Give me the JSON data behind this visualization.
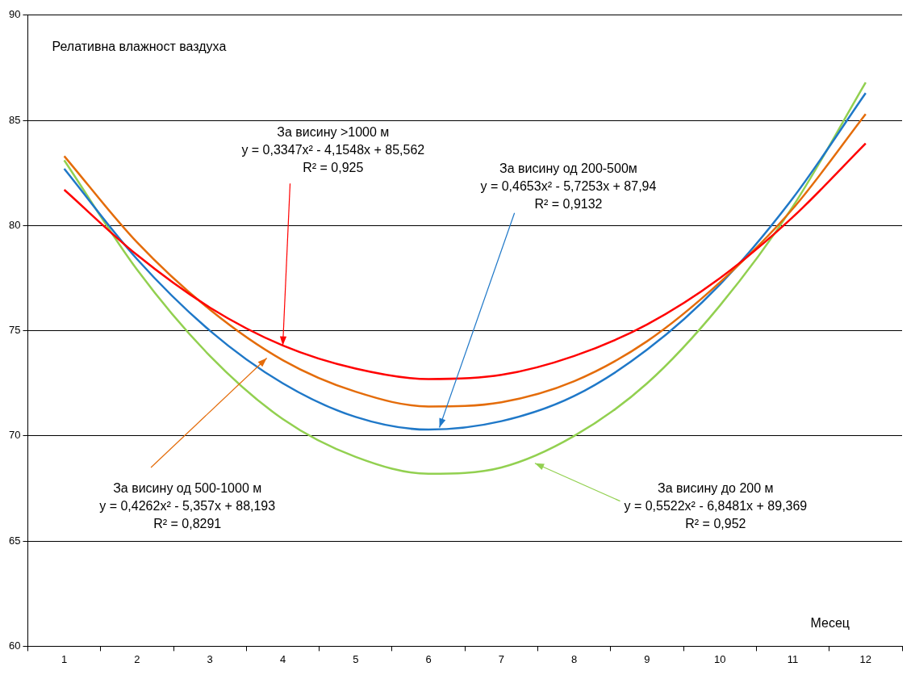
{
  "chart_data": {
    "type": "line",
    "title": "Релативна влажност ваздуха",
    "xlabel": "Месец",
    "categories": [
      "1",
      "2",
      "3",
      "4",
      "5",
      "6",
      "7",
      "8",
      "9",
      "10",
      "11",
      "12"
    ],
    "series": [
      {
        "color": "#ff0000",
        "values": [
          81.7,
          78.6,
          76.1,
          74.3,
          73.2,
          72.7,
          72.9,
          73.8,
          75.3,
          77.5,
          80.4,
          83.9
        ]
      },
      {
        "color": "#e46c0a",
        "values": [
          83.3,
          79.2,
          76.0,
          73.6,
          72.1,
          71.4,
          71.6,
          72.6,
          74.5,
          77.3,
          80.8,
          85.3
        ]
      },
      {
        "color": "#1f78c8",
        "values": [
          82.7,
          78.4,
          75.0,
          72.5,
          70.9,
          70.3,
          70.7,
          71.9,
          74.1,
          77.2,
          81.3,
          86.3
        ]
      },
      {
        "color": "#92d050",
        "values": [
          83.1,
          77.9,
          73.8,
          70.8,
          69.0,
          68.2,
          68.5,
          70.0,
          72.5,
          76.2,
          80.9,
          86.8
        ]
      }
    ],
    "ylim": [
      60,
      90
    ],
    "yticks": [
      60,
      65,
      70,
      75,
      80,
      85,
      90
    ],
    "grid": "y",
    "legend": false,
    "marker": "none",
    "line_style": "solid",
    "annotations": [
      {
        "text": "За висину >1000 м\ny = 0,3347x² - 4,1548x + 85,562\nR² = 0,925",
        "x": "4",
        "y": 74.3
      },
      "За висину од 200-500м\ny = 0,4653x² - 5,7253x + 87,94\nR² = 0,9132",
      "За висину од 500-1000 м\ny = 0,4262x² - 5,357x + 88,193\nR² = 0,8291",
      "За висину до 200 м\ny = 0,5522x² - 6,8481x + 89,369\nR² = 0,952"
    ]
  }
}
